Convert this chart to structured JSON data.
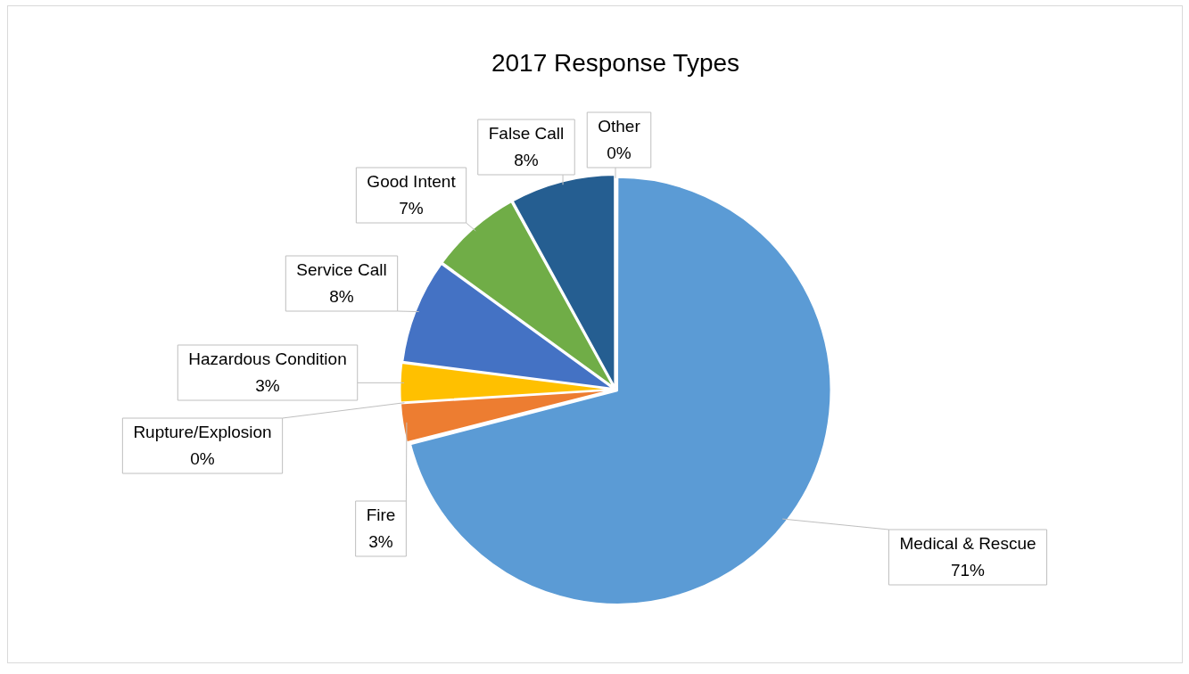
{
  "chart_data": {
    "type": "pie",
    "title": "2017 Response Types",
    "categories": [
      "Medical & Rescue",
      "Fire",
      "Rupture/Explosion",
      "Hazardous Condition",
      "Service Call",
      "Good Intent",
      "False Call",
      "Other"
    ],
    "values": [
      71,
      3,
      0,
      3,
      8,
      7,
      8,
      0
    ],
    "colors": [
      "#5b9bd5",
      "#ed7d31",
      "#a5a5a5",
      "#ffc000",
      "#4472c4",
      "#70ad47",
      "#255e91",
      "#9e480e"
    ],
    "value_labels": [
      "71%",
      "3%",
      "0%",
      "3%",
      "8%",
      "7%",
      "8%",
      "0%"
    ],
    "legend": false
  }
}
